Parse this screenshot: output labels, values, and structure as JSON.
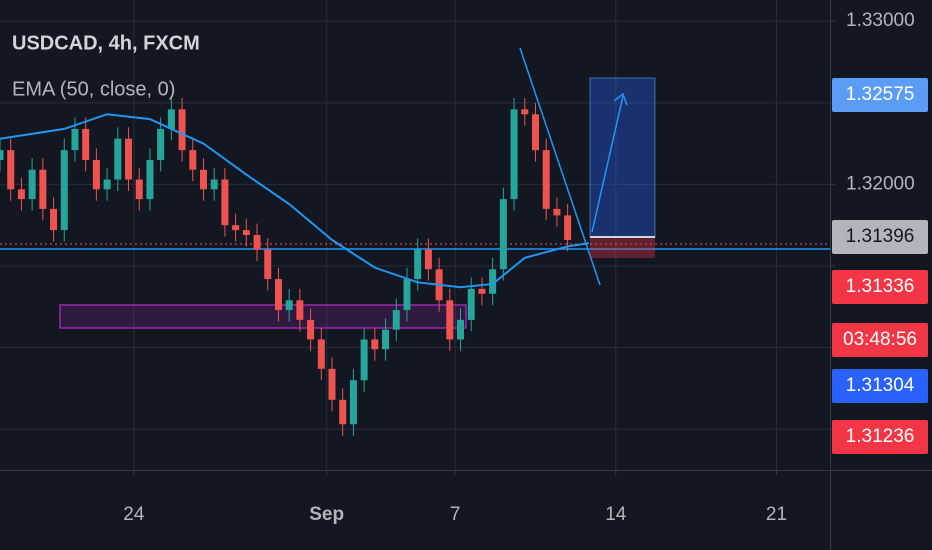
{
  "chart_data": {
    "type": "candlestick",
    "title": "USDCAD, 4h, FXCM",
    "x": [
      -25,
      -23,
      -21,
      -19,
      -17,
      -15,
      -13,
      -11,
      -9,
      -7,
      -5,
      -3,
      -1,
      1,
      3,
      5,
      7,
      9,
      11,
      13,
      15,
      17,
      19,
      21,
      23,
      25,
      27,
      29,
      31,
      33,
      35,
      37,
      39,
      41,
      43,
      45,
      47,
      49,
      51,
      53,
      55,
      57,
      59,
      61,
      63,
      65,
      67,
      69,
      71,
      73,
      75,
      77,
      79,
      81
    ],
    "open": [
      1.3215,
      1.3221,
      1.3197,
      1.3191,
      1.3209,
      1.3185,
      1.3172,
      1.3221,
      1.3234,
      1.3215,
      1.3197,
      1.3203,
      1.3228,
      1.3203,
      1.3191,
      1.3215,
      1.3234,
      1.3246,
      1.3221,
      1.3209,
      1.3197,
      1.3203,
      1.3175,
      1.3172,
      1.3169,
      1.316,
      1.3142,
      1.3123,
      1.3129,
      1.3117,
      1.3105,
      1.3087,
      1.3068,
      1.3053,
      1.308,
      1.3105,
      1.3099,
      1.3111,
      1.3123,
      1.3142,
      1.316,
      1.3148,
      1.3129,
      1.3105,
      1.3117,
      1.3136,
      1.3133,
      1.3148,
      1.3191,
      1.3246,
      1.3243,
      1.3221,
      1.3185,
      1.3181
    ],
    "high": [
      1.3228,
      1.3228,
      1.3204,
      1.3216,
      1.3216,
      1.3192,
      1.3228,
      1.3241,
      1.3241,
      1.3222,
      1.321,
      1.3235,
      1.3235,
      1.321,
      1.3222,
      1.3241,
      1.3253,
      1.3253,
      1.3228,
      1.3216,
      1.321,
      1.321,
      1.3182,
      1.3179,
      1.3176,
      1.3167,
      1.3149,
      1.3136,
      1.3136,
      1.3124,
      1.3112,
      1.3094,
      1.3075,
      1.3087,
      1.3112,
      1.3112,
      1.3118,
      1.313,
      1.3149,
      1.3167,
      1.3167,
      1.3155,
      1.3136,
      1.3124,
      1.3143,
      1.3143,
      1.3155,
      1.3198,
      1.3253,
      1.3253,
      1.325,
      1.3228,
      1.3192,
      1.3188
    ],
    "low": [
      1.3208,
      1.319,
      1.3184,
      1.3184,
      1.3178,
      1.3165,
      1.3165,
      1.3214,
      1.3208,
      1.319,
      1.319,
      1.3196,
      1.3196,
      1.3184,
      1.3184,
      1.3208,
      1.3227,
      1.3214,
      1.3202,
      1.319,
      1.319,
      1.3168,
      1.3165,
      1.3162,
      1.3153,
      1.3135,
      1.3116,
      1.3116,
      1.311,
      1.3098,
      1.308,
      1.3061,
      1.3046,
      1.3046,
      1.3073,
      1.3092,
      1.3092,
      1.3104,
      1.3116,
      1.3135,
      1.3141,
      1.3122,
      1.3098,
      1.3098,
      1.311,
      1.3126,
      1.3126,
      1.3141,
      1.3184,
      1.3236,
      1.3214,
      1.3178,
      1.3174,
      1.3159
    ],
    "close": [
      1.3221,
      1.3197,
      1.3191,
      1.3209,
      1.3185,
      1.3172,
      1.3221,
      1.3234,
      1.3215,
      1.3197,
      1.3203,
      1.3228,
      1.3203,
      1.3191,
      1.3215,
      1.3234,
      1.3246,
      1.3221,
      1.3209,
      1.3197,
      1.3203,
      1.3175,
      1.3172,
      1.3169,
      1.316,
      1.3142,
      1.3123,
      1.3129,
      1.3117,
      1.3105,
      1.3087,
      1.3068,
      1.3053,
      1.308,
      1.3105,
      1.3099,
      1.3111,
      1.3123,
      1.3142,
      1.316,
      1.3148,
      1.3129,
      1.3105,
      1.3117,
      1.3136,
      1.3133,
      1.3148,
      1.3191,
      1.3246,
      1.3243,
      1.3221,
      1.3185,
      1.3181,
      1.3166
    ],
    "up_color": "#26a69a",
    "down_color": "#ef5350",
    "xlim": [
      -25,
      130
    ],
    "xticks": [
      {
        "value": 0,
        "label": "24"
      },
      {
        "value": 36,
        "label": "Sep"
      },
      {
        "value": 60,
        "label": "7"
      },
      {
        "value": 90,
        "label": "14"
      },
      {
        "value": 120,
        "label": "21"
      }
    ],
    "ylim": [
      1.3025,
      1.3313
    ],
    "yticks": [
      {
        "value": 1.33,
        "label": "1.33000"
      },
      {
        "value": 1.325,
        "label": null
      },
      {
        "value": 1.32,
        "label": "1.32000"
      },
      {
        "value": 1.315,
        "label": null
      },
      {
        "value": 1.31,
        "label": null
      },
      {
        "value": 1.305,
        "label": null
      }
    ],
    "grid": true,
    "series": [
      {
        "name": "EMA (50, close, 0)",
        "color": "#2196f3",
        "x": [
          -25,
          -13,
          -5,
          3,
          13,
          21,
          29,
          37,
          45,
          53,
          61,
          67,
          73,
          81,
          85
        ],
        "values": [
          1.3228,
          1.3234,
          1.3243,
          1.324,
          1.3225,
          1.3206,
          1.3188,
          1.3166,
          1.3149,
          1.314,
          1.3137,
          1.3139,
          1.3155,
          1.3162,
          1.3164
        ]
      }
    ],
    "price_labels": [
      1.32575,
      1.31396,
      1.31336,
      1.31304,
      1.31236
    ],
    "price_label_colors": [
      "#5b9cf6",
      "#b2b5be",
      "#f23645",
      "#2962ff",
      "#f23645"
    ],
    "countdown": "03:48:56"
  }
}
